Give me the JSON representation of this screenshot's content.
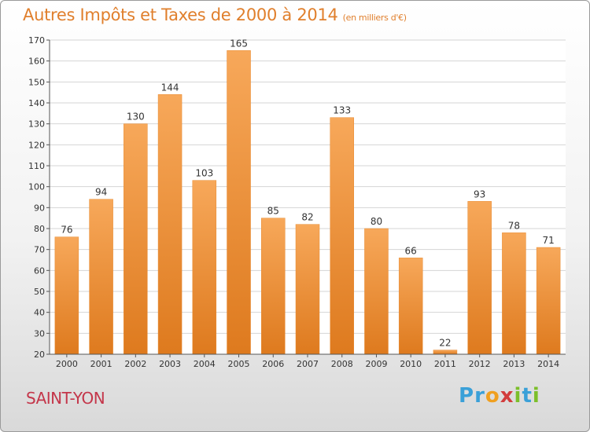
{
  "header": {
    "title": "Autres Impôts et Taxes de 2000 à 2014",
    "unit": "(en milliers d'€)"
  },
  "commune": "SAINT-YON",
  "logo": {
    "text": "Proxiti",
    "letters": [
      "P",
      "r",
      "o",
      "x",
      "i",
      "t",
      "i"
    ],
    "colors": [
      "#3aa0d8",
      "#3aa0d8",
      "#f0a020",
      "#d23c3c",
      "#7cbf2a",
      "#3aa0d8",
      "#7cbf2a"
    ]
  },
  "colors": {
    "title": "#e07f2c",
    "commune": "#c4364a",
    "bar_light": "#f7a85a",
    "bar_dark": "#de7a1e"
  },
  "chart_data": {
    "type": "bar",
    "title": "Autres Impôts et Taxes de 2000 à 2014",
    "categories": [
      "2000",
      "2001",
      "2002",
      "2003",
      "2004",
      "2005",
      "2006",
      "2007",
      "2008",
      "2009",
      "2010",
      "2011",
      "2012",
      "2013",
      "2014"
    ],
    "values": [
      76,
      94,
      130,
      144,
      103,
      165,
      85,
      82,
      133,
      80,
      66,
      22,
      93,
      78,
      71
    ],
    "ylim": [
      20,
      170
    ],
    "yticks": [
      20,
      30,
      40,
      50,
      60,
      70,
      80,
      90,
      100,
      110,
      120,
      130,
      140,
      150,
      160,
      170
    ],
    "grid": true,
    "xlabel": "",
    "ylabel": ""
  }
}
